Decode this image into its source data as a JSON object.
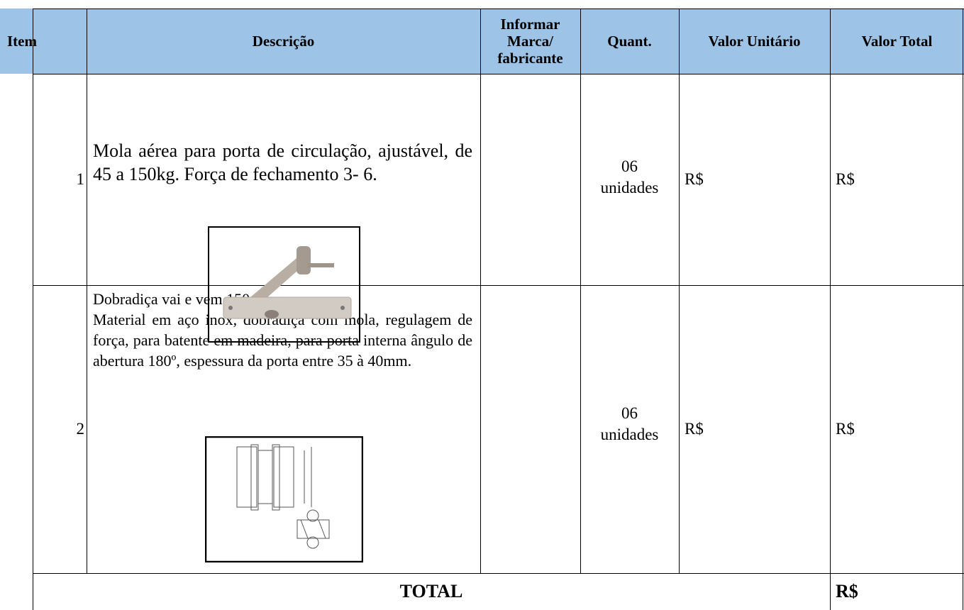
{
  "table": {
    "header": [
      "Item",
      "Descrição",
      "Informar Marca/ fabricante",
      "Quant.",
      "Valor Unitário",
      "Valor Total"
    ],
    "rows": [
      {
        "item": "1",
        "description": "Mola aérea para porta de circulação, ajustável, de 45 a 150kg. Força de fechamento 3- 6.",
        "quantity": "06",
        "unit": "unidades",
        "unit_value": "R$",
        "total_value": "R$"
      },
      {
        "item": "2",
        "description_title": "Dobradiça vai e vem 150mm.",
        "description": "Material em aço inox, dobradiça com mola, regulagem de força, para batente em madeira, para porta interna ângulo de abertura 180º, espessura da porta entre 35 à 40mm.",
        "quantity": "06",
        "unit": "unidades",
        "unit_value": "R$",
        "total_value": "R$"
      }
    ],
    "total_label": "TOTAL",
    "total_value": "R$"
  }
}
